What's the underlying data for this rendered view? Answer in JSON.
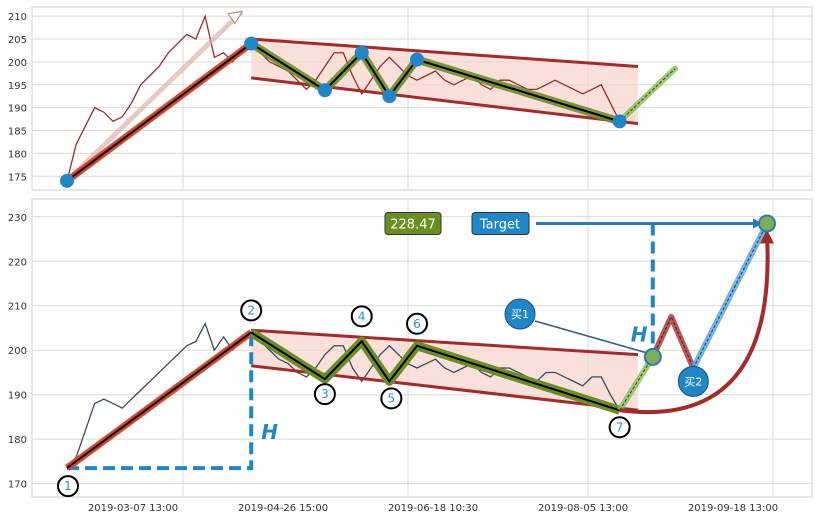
{
  "chart_data": [
    {
      "type": "line",
      "panel": "top",
      "ylim": [
        172,
        212
      ],
      "yticks": [
        175,
        180,
        185,
        190,
        195,
        200,
        205,
        210
      ],
      "grid": true,
      "colors": {
        "price": "#9b2a2a",
        "marker": "#1f86c8",
        "uptrend": "#d9472b",
        "channel": "#a52a2a",
        "channel_fill": "#f7d6cf",
        "zigzag": "#6b8e23",
        "projection": "#8fbf5a"
      },
      "series": [
        {
          "x": [
            0.0,
            0.05,
            0.1,
            0.15,
            0.2,
            0.25,
            0.3,
            0.35,
            0.4,
            0.45,
            0.5,
            0.55,
            0.6,
            0.65,
            0.7,
            0.75,
            0.8,
            0.85,
            0.9,
            0.95,
            1.0
          ],
          "values": [
            174,
            182,
            186,
            190,
            189,
            187,
            188,
            191,
            195,
            197,
            199,
            202,
            204,
            206,
            205,
            210,
            201,
            202,
            200,
            203,
            204
          ]
        },
        {
          "x": [
            1.0,
            1.05,
            1.1,
            1.15,
            1.2,
            1.25,
            1.3,
            1.35,
            1.4,
            1.45,
            1.5,
            1.55,
            1.6,
            1.65,
            1.7,
            1.75,
            1.8,
            1.85,
            1.9,
            1.95,
            2.0,
            2.05,
            2.1,
            2.15,
            2.2,
            2.25,
            2.3,
            2.35,
            2.4,
            2.45,
            2.5,
            2.55,
            2.6,
            2.65,
            2.7,
            2.75,
            2.8,
            2.85,
            2.9,
            2.95,
            3.0
          ],
          "values": [
            204,
            202,
            200,
            199,
            198,
            196,
            194,
            196,
            199,
            202,
            202,
            197,
            193,
            196,
            199,
            201,
            199,
            197,
            196,
            197,
            198,
            196,
            195,
            196,
            197,
            195,
            194,
            196,
            196,
            195,
            194,
            194,
            195,
            196,
            195,
            194,
            193,
            194,
            195,
            191,
            187
          ]
        }
      ],
      "pivots": [
        {
          "x": 0.0,
          "y": 174
        },
        {
          "x": 1.0,
          "y": 204
        },
        {
          "x": 1.4,
          "y": 193.8
        },
        {
          "x": 1.6,
          "y": 202
        },
        {
          "x": 1.75,
          "y": 192.5
        },
        {
          "x": 1.9,
          "y": 200.5
        },
        {
          "x": 3.0,
          "y": 187
        }
      ],
      "channel_upper": [
        [
          1.0,
          205
        ],
        [
          3.1,
          199
        ]
      ],
      "channel_lower": [
        [
          1.0,
          196.5
        ],
        [
          3.1,
          186.5
        ]
      ],
      "projection": [
        [
          3.0,
          187
        ],
        [
          3.3,
          198.5
        ]
      ],
      "uptrend": [
        [
          0.0,
          174
        ],
        [
          1.0,
          204
        ]
      ],
      "uptrend_arrow": [
        [
          0.0,
          174
        ],
        [
          0.95,
          211
        ]
      ]
    },
    {
      "type": "line",
      "panel": "bottom",
      "ylim": [
        167,
        234
      ],
      "yticks": [
        170,
        180,
        190,
        200,
        210,
        220,
        230
      ],
      "xtick_labels": [
        "2019-03-07 13:00",
        "2019-04-26 15:00",
        "2019-06-18 10:30",
        "2019-08-05 13:00",
        "2019-09-18 13:00"
      ],
      "grid": true,
      "colors": {
        "price": "#3c4a5c",
        "wave": "#6b8e23",
        "uptrend": "#d9472b",
        "channel": "#a52a2a",
        "channel_fill": "#f7d6cf",
        "h_line": "#1f86c8",
        "target_line": "#2a7ab8",
        "projection_red": "#b03a3a",
        "projection_blue": "#5aa7dd",
        "curve": "#a52a2a"
      },
      "series": [
        {
          "x": [
            0.0,
            0.05,
            0.1,
            0.15,
            0.2,
            0.25,
            0.3,
            0.35,
            0.4,
            0.45,
            0.5,
            0.55,
            0.6,
            0.65,
            0.7,
            0.75,
            0.8,
            0.85,
            0.9,
            0.95,
            1.0
          ],
          "values": [
            173.5,
            176,
            182,
            188,
            189,
            188,
            187,
            189,
            191,
            193,
            195,
            197,
            199,
            201,
            202,
            206,
            200,
            203,
            200,
            203,
            204
          ]
        },
        {
          "x": [
            1.0,
            1.05,
            1.1,
            1.15,
            1.2,
            1.25,
            1.3,
            1.35,
            1.4,
            1.45,
            1.5,
            1.55,
            1.6,
            1.65,
            1.7,
            1.75,
            1.8,
            1.85,
            1.9,
            1.95,
            2.0,
            2.05,
            2.1,
            2.15,
            2.2,
            2.25,
            2.3,
            2.35,
            2.4,
            2.45,
            2.5,
            2.55,
            2.6,
            2.65,
            2.7,
            2.75,
            2.8,
            2.85,
            2.9,
            2.95,
            3.0
          ],
          "values": [
            204,
            202,
            200,
            198,
            197,
            195,
            194,
            196,
            199,
            201,
            201,
            196,
            193,
            196,
            199,
            201,
            199,
            197,
            196,
            197,
            198,
            196,
            195,
            196,
            197,
            195,
            194,
            196,
            196,
            195,
            194,
            193,
            195,
            195,
            194,
            193,
            192,
            194,
            194,
            190,
            186.5
          ]
        }
      ],
      "wave_points": [
        {
          "label": "1",
          "x": 0.0,
          "y": 173.5
        },
        {
          "label": "2",
          "x": 1.0,
          "y": 204
        },
        {
          "label": "3",
          "x": 1.4,
          "y": 193.5
        },
        {
          "label": "4",
          "x": 1.6,
          "y": 202
        },
        {
          "label": "5",
          "x": 1.75,
          "y": 193
        },
        {
          "label": "6",
          "x": 1.9,
          "y": 201
        },
        {
          "label": "7",
          "x": 3.0,
          "y": 186.5
        }
      ],
      "channel_upper": [
        [
          1.0,
          204.5
        ],
        [
          3.1,
          199
        ]
      ],
      "channel_lower": [
        [
          1.0,
          196.5
        ],
        [
          3.1,
          186.5
        ]
      ],
      "h_label": "H",
      "buy1": {
        "label": "买1",
        "x": 3.18,
        "y": 198.5
      },
      "buy2": {
        "label": "买2",
        "x": 3.4,
        "y": 193
      },
      "target": {
        "label": "Target",
        "x": 3.8,
        "y": 228.5
      },
      "value_box": "228.47",
      "red_projection": [
        [
          3.18,
          198.5
        ],
        [
          3.28,
          207.5
        ],
        [
          3.4,
          196
        ]
      ],
      "blue_projection": [
        [
          3.4,
          196
        ],
        [
          3.8,
          228.5
        ]
      ],
      "green_projection": [
        [
          3.0,
          186.5
        ],
        [
          3.18,
          198.5
        ]
      ]
    }
  ]
}
